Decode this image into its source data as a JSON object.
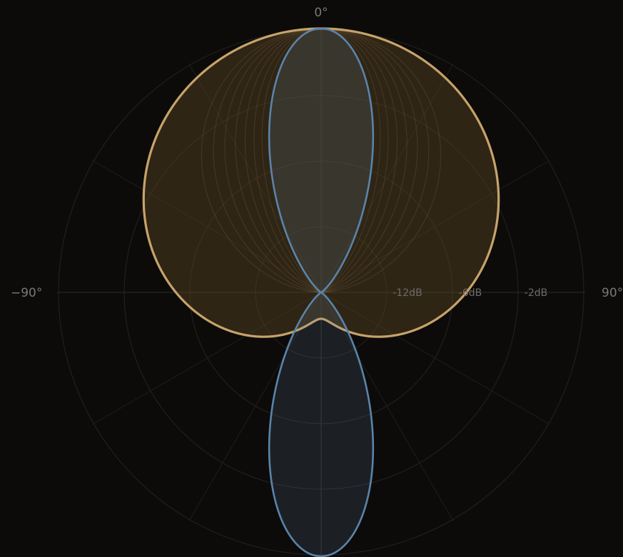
{
  "chart_data": {
    "type": "line",
    "subtype": "polar-pattern",
    "angle_labels": {
      "top": "0°",
      "left": "−90°",
      "right": "90°"
    },
    "ring_labels": [
      "-12dB",
      "-6dB",
      "-2dB"
    ],
    "ring_count": 4,
    "spoke_step_deg": 30,
    "series": [
      {
        "key": "wide",
        "color": "#c7a36a",
        "fill": "#5a4523",
        "fill_opacity": 0.45,
        "stroke_width": 3.2,
        "pattern": {
          "omni": 0.55,
          "cos": 0.45,
          "cos_power": 1
        }
      },
      {
        "key": "narrow",
        "color": "#5a84aa",
        "fill": "#6d8fb0",
        "fill_opacity": 0.16,
        "stroke_width": 2.6,
        "pattern": {
          "omni": 0.0,
          "cos": 1.0,
          "cos_power": 9
        }
      }
    ],
    "fan_lines": {
      "count": 7,
      "color": "#c7a36a",
      "opacity": 0.14
    },
    "grid": true
  }
}
